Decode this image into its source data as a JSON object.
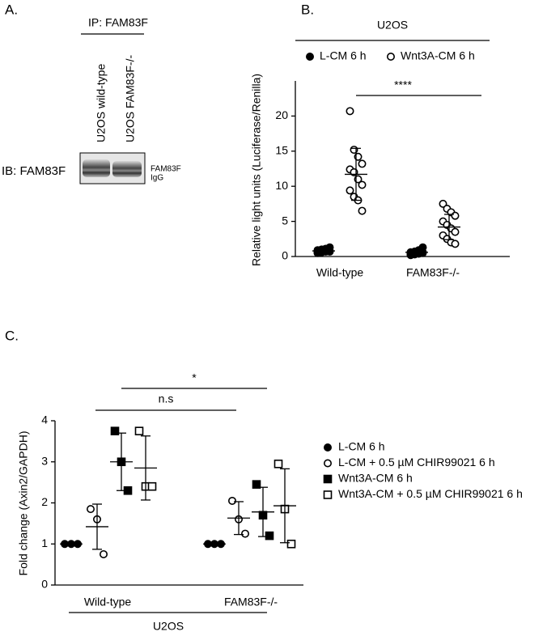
{
  "panel_labels": [
    "A.",
    "B.",
    "C."
  ],
  "blot": {
    "ip_label": "IP: FAM83F",
    "lanes": [
      "U2OS wild-type",
      "U2OS FAM83F-/-"
    ],
    "ib_label": "IB: FAM83F",
    "bands": [
      "FAM83F",
      "IgG"
    ]
  },
  "chart_data": [
    {
      "type": "dot-plot",
      "header": "U2OS",
      "ylabel": "Relative light units (Luciferase/Renilla)",
      "categories": [
        "Wild-type",
        "FAM83F-/-"
      ],
      "ylim": [
        0,
        25
      ],
      "yticks": [
        0,
        5,
        10,
        15,
        20
      ],
      "series": [
        {
          "name": "L-CM 6 h",
          "marker": "circle",
          "filled": true,
          "color": "#000000",
          "values": [
            [
              0.5,
              0.6,
              0.7,
              0.8,
              0.9,
              1.0,
              1.1,
              1.3,
              0.6,
              0.8,
              0.9,
              0.7
            ],
            [
              0.2,
              0.3,
              0.4,
              0.5,
              0.6,
              0.7,
              0.8,
              1.3,
              0.4,
              0.5,
              0.9,
              0.6
            ]
          ],
          "mean": [
            0.8,
            0.6
          ],
          "sd": [
            0.3,
            0.4
          ]
        },
        {
          "name": "Wnt3A-CM 6 h",
          "marker": "circle",
          "filled": false,
          "color": "#000000",
          "values": [
            [
              20.7,
              15.2,
              14.2,
              13.2,
              12.4,
              12.0,
              11.0,
              10.2,
              9.4,
              8.5,
              8.0,
              6.5
            ],
            [
              7.5,
              6.8,
              6.3,
              5.8,
              5.0,
              4.5,
              4.0,
              3.5,
              3.0,
              2.5,
              2.0,
              1.8
            ]
          ],
          "mean": [
            11.7,
            4.2
          ],
          "sd": [
            3.7,
            1.8
          ]
        }
      ],
      "annotations": [
        "****"
      ]
    },
    {
      "type": "dot-plot",
      "header": "U2OS",
      "ylabel": "Fold change (Axin2/GAPDH)",
      "categories": [
        "Wild-type",
        "FAM83F-/-"
      ],
      "ylim": [
        0,
        4
      ],
      "yticks": [
        0,
        1,
        2,
        3,
        4
      ],
      "series": [
        {
          "name": "L-CM 6 h",
          "marker": "circle",
          "filled": true,
          "color": "#000000",
          "values": [
            [
              1,
              1,
              1
            ],
            [
              1,
              1,
              1
            ]
          ],
          "mean": [
            1,
            1
          ],
          "sd": [
            0,
            0
          ]
        },
        {
          "name": "L-CM + 0.5 µM CHIR99021 6 h",
          "marker": "circle",
          "filled": false,
          "color": "#000000",
          "values": [
            [
              1.85,
              1.6,
              0.75
            ],
            [
              2.05,
              1.6,
              1.25
            ]
          ],
          "mean": [
            1.42,
            1.63
          ],
          "sd": [
            0.55,
            0.4
          ]
        },
        {
          "name": "Wnt3A-CM 6 h",
          "marker": "square",
          "filled": true,
          "color": "#000000",
          "values": [
            [
              3.75,
              3.0,
              2.3
            ],
            [
              2.45,
              1.7,
              1.2
            ]
          ],
          "mean": [
            3.0,
            1.78
          ],
          "sd": [
            0.7,
            0.6
          ]
        },
        {
          "name": "Wnt3A-CM + 0.5 µM CHIR99021 6 h",
          "marker": "square",
          "filled": false,
          "color": "#000000",
          "values": [
            [
              3.75,
              2.4,
              2.4
            ],
            [
              2.95,
              1.85,
              1.0
            ]
          ],
          "mean": [
            2.85,
            1.93
          ],
          "sd": [
            0.78,
            0.9
          ]
        }
      ],
      "annotations": [
        "*",
        "n.s"
      ]
    }
  ]
}
